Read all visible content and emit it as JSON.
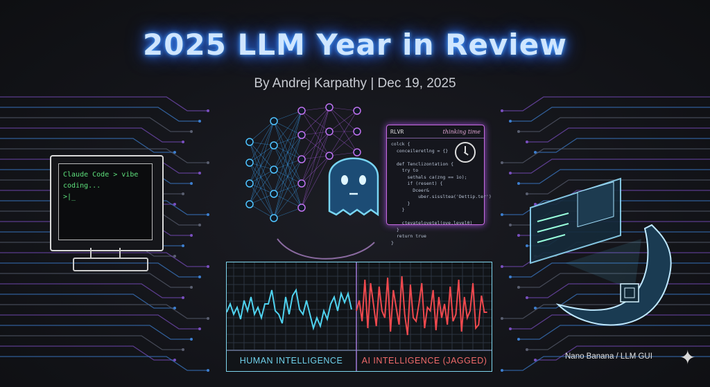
{
  "title": "2025 LLM Year in Review",
  "byline": "By Andrej Karpathy | Dec 19, 2025",
  "terminal": {
    "line1": "Claude Code > vibe coding...",
    "line2": ">|_"
  },
  "code_window": {
    "title": "RLVR",
    "tab": "thinking time",
    "icon": "alarm-clock-icon",
    "code": "colck {\n  conceileretlng = {}\n\n  def Tenclizontation {\n    try to\n      sethals ca(zng == 1o);\n      if (resent) {\n        Dceer&\n          uber.sissltea('Dettip.ter')\n      }\n    }\n\n    ctevatelovetel(ove.level0)\n  }\n  return true\n}"
  },
  "graph": {
    "left_label": "HUMAN INTELLIGENCE",
    "right_label": "AI INTELLIGENCE (JAGGED)",
    "human_color": "#4fd3f0",
    "ai_color": "#f0494e"
  },
  "credit": "Nano Banana / LLM GUI",
  "sparkle_icon": "sparkle-icon",
  "colors": {
    "accent_blue": "#4aa3ff",
    "accent_purple": "#b35de0",
    "background": "#131419"
  }
}
